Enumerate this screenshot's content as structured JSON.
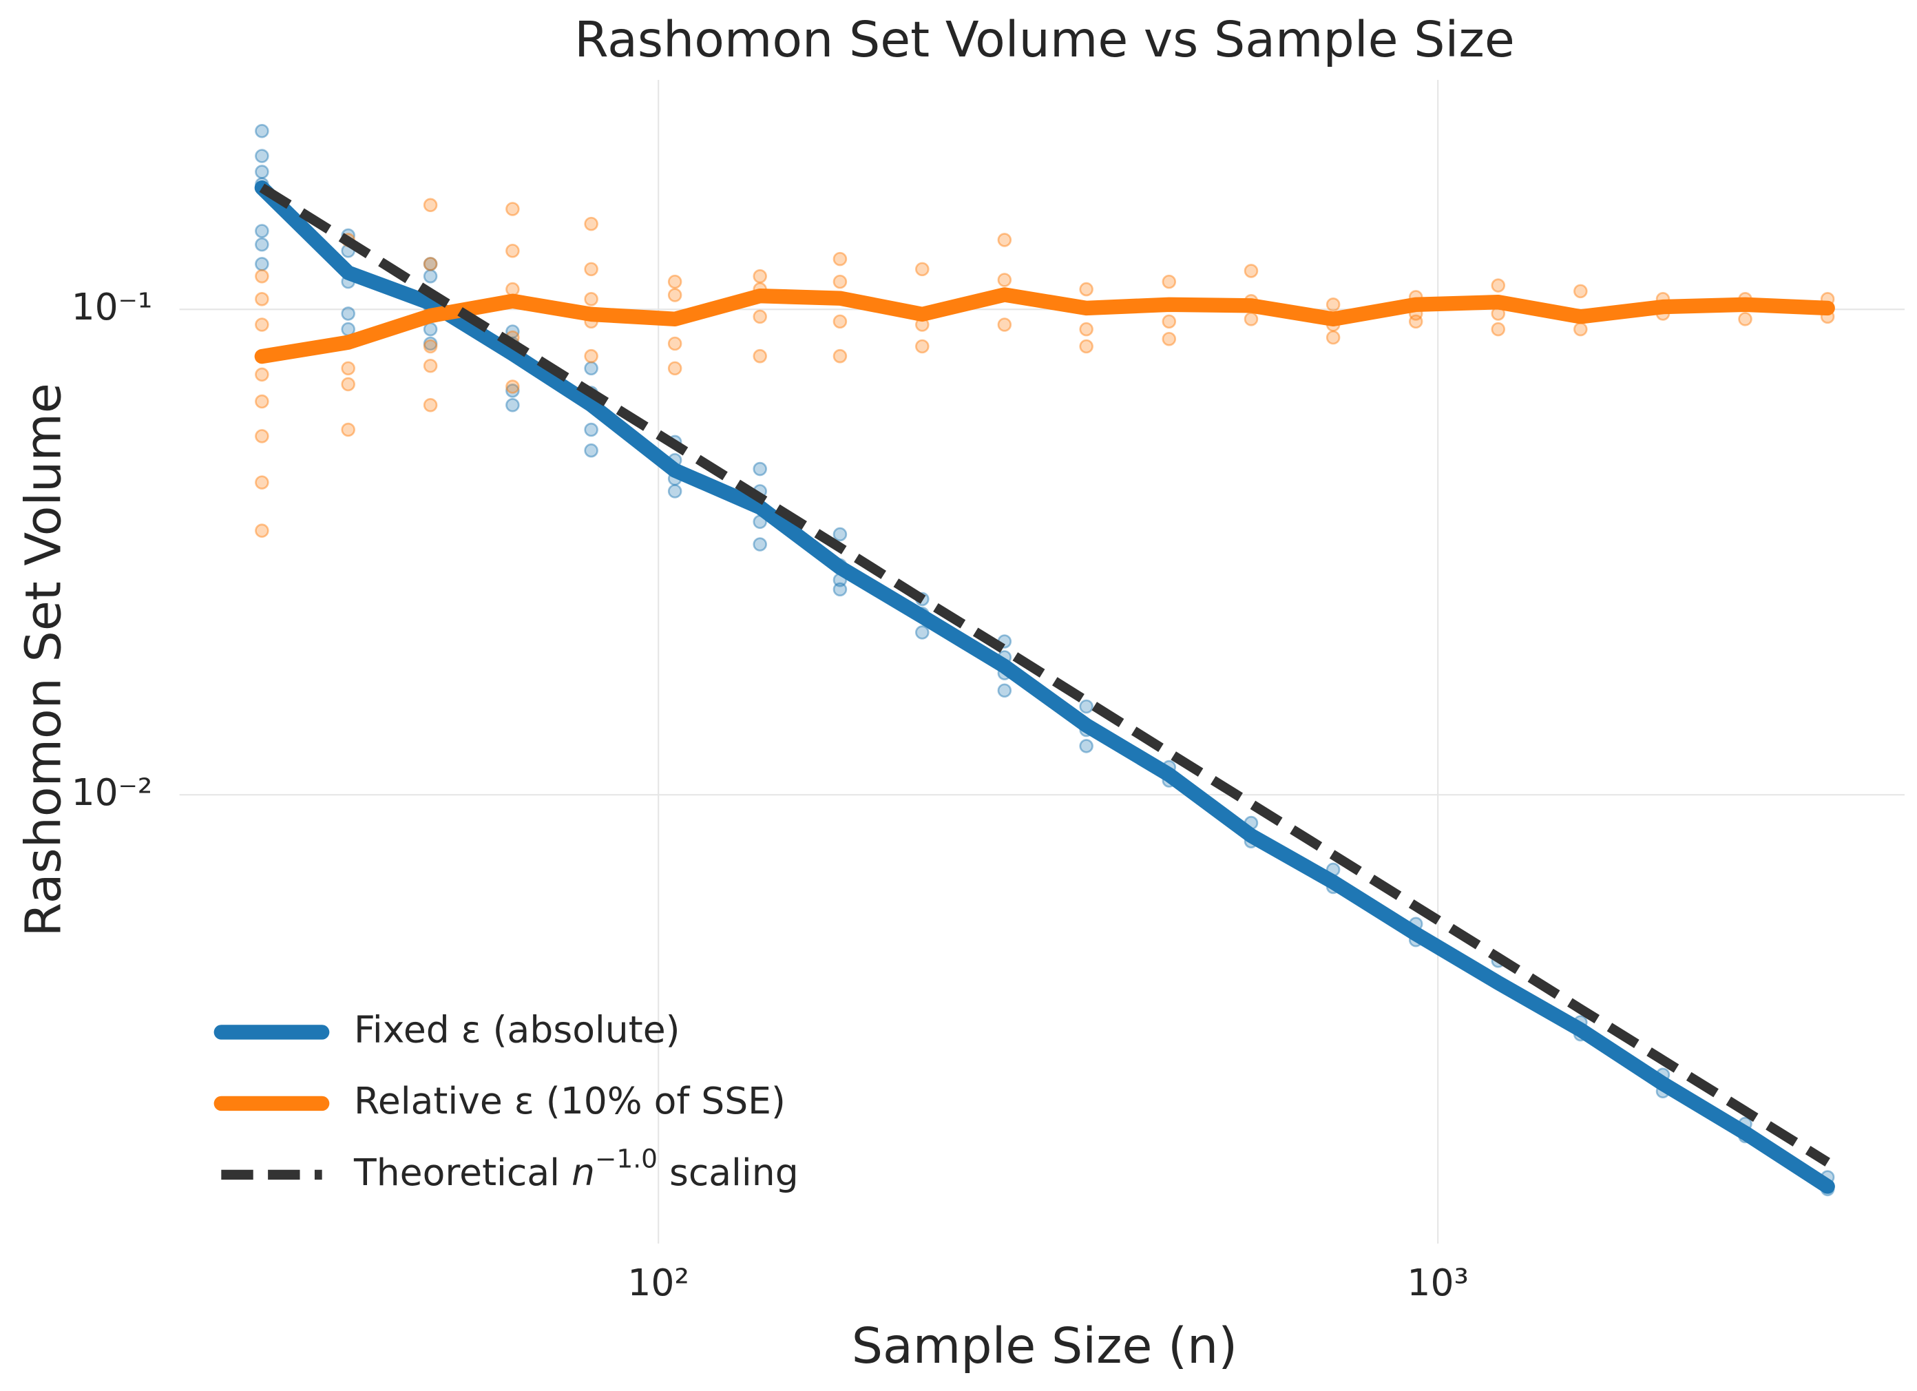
{
  "chart_data": {
    "type": "line",
    "title": "Rashomon Set Volume vs Sample Size",
    "xlabel": "Sample Size (n)",
    "ylabel": "Rashomon Set Volume",
    "xscale": "log",
    "yscale": "log",
    "grid": true,
    "legend": "lower left",
    "xlim": [
      24.3,
      3970
    ],
    "ylim": [
      0.00119,
      0.297
    ],
    "xticks": [
      {
        "value": 100,
        "label": "10²"
      },
      {
        "value": 1000,
        "label": "10³"
      }
    ],
    "yticks": [
      {
        "value": 0.01,
        "label": "10⁻²"
      },
      {
        "value": 0.1,
        "label": "10⁻¹"
      }
    ],
    "x": [
      31,
      40,
      51,
      65,
      82,
      105,
      135,
      171,
      218,
      278,
      354,
      452,
      576,
      734,
      937,
      1195,
      1524,
      1944,
      2479,
      3162
    ],
    "series": [
      {
        "name": "Fixed ε (absolute)",
        "color": "#1f77b4",
        "style": "solid",
        "values": [
          0.178,
          0.119,
          0.103,
          0.081,
          0.0636,
          0.0466,
          0.0391,
          0.0294,
          0.0233,
          0.0184,
          0.0139,
          0.011,
          0.00824,
          0.00661,
          0.00517,
          0.0041,
          0.00328,
          0.00254,
          0.00201,
          0.00156
        ]
      },
      {
        "name": "Relative ε (10% of SSE)",
        "color": "#ff7f0e",
        "style": "solid",
        "values": [
          0.08,
          0.0855,
          0.097,
          0.104,
          0.0977,
          0.0955,
          0.1066,
          0.1054,
          0.0977,
          0.1072,
          0.1006,
          0.1023,
          0.1018,
          0.0955,
          0.1023,
          0.1035,
          0.0966,
          0.1012,
          0.1023,
          0.1006
        ]
      },
      {
        "name": "Theoretical n−1.0 scaling",
        "color": "#333333",
        "style": "dashed",
        "values": [
          0.178,
          0.138,
          0.108,
          0.0849,
          0.0673,
          0.0526,
          0.0409,
          0.0323,
          0.0253,
          0.0199,
          0.0156,
          0.0122,
          0.00958,
          0.00752,
          0.00589,
          0.00462,
          0.00362,
          0.00284,
          0.00223,
          0.00175
        ]
      }
    ],
    "scatter": [
      {
        "color": "#1f77b4",
        "x": [
          31,
          31,
          31,
          31,
          31,
          31,
          31,
          40,
          40,
          40,
          40,
          40,
          51,
          51,
          51,
          51,
          51,
          65,
          65,
          65,
          65,
          82,
          82,
          82,
          82,
          105,
          105,
          105,
          105,
          135,
          135,
          135,
          135,
          171,
          171,
          171,
          171,
          218,
          218,
          218,
          278,
          278,
          278,
          278,
          354,
          354,
          354,
          452,
          452,
          576,
          576,
          734,
          734,
          937,
          937,
          1195,
          1195,
          1524,
          1524,
          1944,
          1944,
          2479,
          2479,
          3162,
          3162
        ],
        "values": [
          0.233,
          0.207,
          0.192,
          0.181,
          0.145,
          0.136,
          0.124,
          0.142,
          0.132,
          0.114,
          0.098,
          0.091,
          0.124,
          0.117,
          0.101,
          0.091,
          0.085,
          0.09,
          0.085,
          0.068,
          0.0635,
          0.0756,
          0.0673,
          0.0565,
          0.0512,
          0.0533,
          0.0489,
          0.0448,
          0.0422,
          0.0469,
          0.0422,
          0.0365,
          0.0328,
          0.0344,
          0.0297,
          0.0277,
          0.0265,
          0.0253,
          0.0236,
          0.0216,
          0.0207,
          0.0192,
          0.0178,
          0.0164,
          0.0152,
          0.0136,
          0.0126,
          0.0114,
          0.0107,
          0.00875,
          0.00802,
          0.00701,
          0.00646,
          0.00542,
          0.00502,
          0.00455,
          0.0041,
          0.0034,
          0.00321,
          0.00265,
          0.00245,
          0.0021,
          0.00198,
          0.00163,
          0.00154
        ]
      },
      {
        "color": "#ff7f0e",
        "x": [
          31,
          31,
          31,
          31,
          31,
          31,
          31,
          31,
          40,
          40,
          40,
          40,
          40,
          51,
          51,
          51,
          51,
          51,
          51,
          65,
          65,
          65,
          65,
          65,
          82,
          82,
          82,
          82,
          82,
          105,
          105,
          105,
          105,
          135,
          135,
          135,
          135,
          171,
          171,
          171,
          171,
          218,
          218,
          218,
          278,
          278,
          278,
          354,
          354,
          354,
          452,
          452,
          452,
          576,
          576,
          576,
          734,
          734,
          734,
          937,
          937,
          937,
          1195,
          1195,
          1195,
          1524,
          1524,
          1944,
          1944,
          2479,
          2479,
          3162,
          3162
        ],
        "values": [
          0.117,
          0.105,
          0.093,
          0.0734,
          0.0646,
          0.0548,
          0.044,
          0.035,
          0.139,
          0.119,
          0.0756,
          0.0701,
          0.0565,
          0.164,
          0.124,
          0.098,
          0.0839,
          0.0765,
          0.0635,
          0.161,
          0.132,
          0.11,
          0.0875,
          0.0693,
          0.15,
          0.121,
          0.105,
          0.0944,
          0.0801,
          0.114,
          0.107,
          0.085,
          0.0756,
          0.117,
          0.11,
          0.0966,
          0.0801,
          0.127,
          0.114,
          0.0944,
          0.0801,
          0.121,
          0.093,
          0.0839,
          0.139,
          0.115,
          0.093,
          0.11,
          0.091,
          0.0839,
          0.114,
          0.0944,
          0.0869,
          0.12,
          0.104,
          0.0955,
          0.1023,
          0.093,
          0.0875,
          0.106,
          0.098,
          0.0944,
          0.112,
          0.098,
          0.091,
          0.109,
          0.091,
          0.105,
          0.098,
          0.105,
          0.0955,
          0.105,
          0.0966
        ]
      }
    ]
  }
}
